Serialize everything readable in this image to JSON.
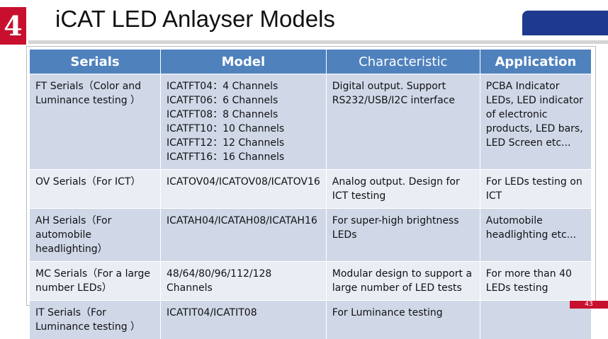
{
  "slide": {
    "number": "4",
    "title": "iCAT LED Anlayser Models",
    "page": "43"
  },
  "table": {
    "headers": [
      "Serials",
      "Model",
      "Characteristic",
      "Application"
    ],
    "rows": [
      [
        "FT Serials（Color and Luminance  testing ）",
        "ICATFT04：4 Channels\nICATFT06：6 Channels\nICATFT08：8 Channels\nICATFT10：10 Channels\nICATFT12：12 Channels\nICATFT16：16 Channels",
        "Digital output. Support RS232/USB/I2C interface",
        "PCBA  Indicator LEDs, LED indicator of electronic  products, LED bars, LED Screen etc..."
      ],
      [
        "OV Serials（For ICT）",
        "ICATOV04/ICATOV08/ICATOV16",
        "Analog output. Design for ICT testing",
        "For LEDs testing on ICT"
      ],
      [
        "AH Serials（For automobile headlighting）",
        "ICATAH04/ICATAH08/ICATAH16",
        "For super-high brightness LEDs",
        "Automobile headlighting etc..."
      ],
      [
        "MC Serials（For a large number LEDs）",
        "48/64/80/96/112/128 Channels",
        "Modular design to support a large number of LED tests",
        "For more than 40 LEDs testing"
      ],
      [
        "IT Serials（For Luminance testing ）",
        "ICATIT04/ICATIT08",
        "For Luminance testing",
        ""
      ]
    ]
  }
}
